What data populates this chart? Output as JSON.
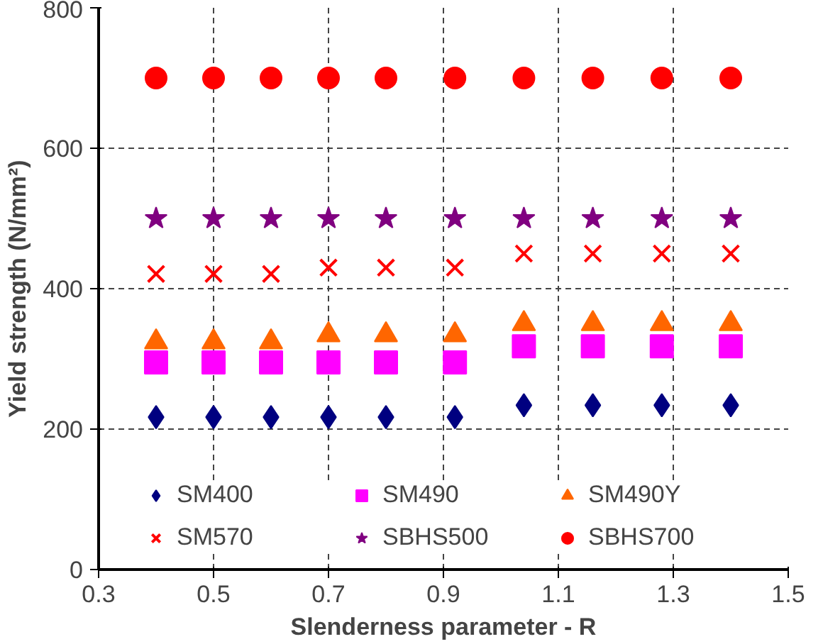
{
  "chart_data": {
    "type": "scatter",
    "xlabel": "Slenderness parameter - R",
    "ylabel": "Yield strength (N/mm²)",
    "x": [
      0.4,
      0.5,
      0.6,
      0.7,
      0.8,
      0.92,
      1.04,
      1.16,
      1.28,
      1.4
    ],
    "series": [
      {
        "name": "SM400",
        "color": "#000080",
        "marker": "diamond",
        "values": [
          217,
          217,
          217,
          217,
          217,
          217,
          234,
          234,
          234,
          234
        ]
      },
      {
        "name": "SM490",
        "color": "#ff00ff",
        "marker": "square",
        "values": [
          295,
          295,
          295,
          295,
          295,
          295,
          318,
          318,
          318,
          318
        ]
      },
      {
        "name": "SM490Y",
        "color": "#ff6600",
        "marker": "triangle",
        "values": [
          324,
          324,
          324,
          334,
          334,
          334,
          350,
          350,
          350,
          350
        ]
      },
      {
        "name": "SM570",
        "color": "#ff0000",
        "marker": "cross",
        "values": [
          421,
          421,
          421,
          430,
          430,
          430,
          450,
          450,
          450,
          450
        ]
      },
      {
        "name": "SBHS500",
        "color": "#800080",
        "marker": "star",
        "values": [
          500,
          500,
          500,
          500,
          500,
          500,
          500,
          500,
          500,
          500
        ]
      },
      {
        "name": "SBHS700",
        "color": "#ff0000",
        "marker": "circle",
        "values": [
          700,
          700,
          700,
          700,
          700,
          700,
          700,
          700,
          700,
          700
        ]
      }
    ],
    "xlim": [
      0.3,
      1.5
    ],
    "ylim": [
      0,
      800
    ],
    "xticks": [
      0.3,
      0.5,
      0.7,
      0.9,
      1.1,
      1.3,
      1.5
    ],
    "yticks": [
      0,
      200,
      400,
      600,
      800
    ],
    "grid": true,
    "legend": "bottom"
  }
}
